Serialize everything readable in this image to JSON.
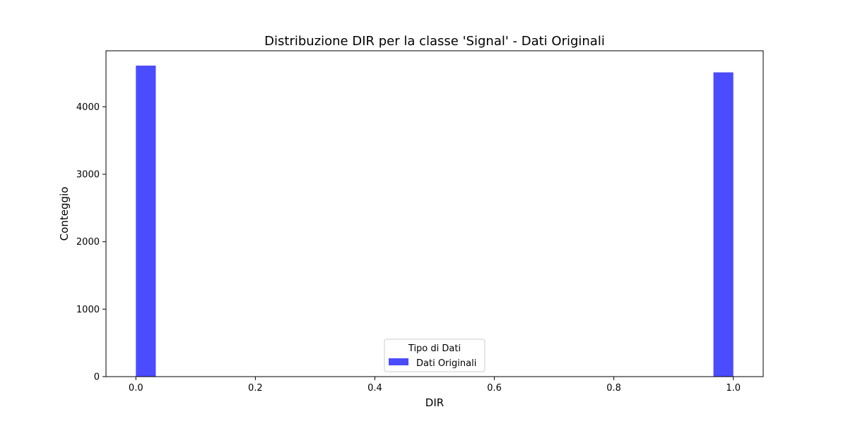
{
  "chart_data": {
    "type": "bar",
    "title": "Distribuzione DIR per la classe 'Signal' - Dati Originali",
    "xlabel": "DIR",
    "ylabel": "Conteggio",
    "xlim": [
      -0.05,
      1.05
    ],
    "ylim": [
      0,
      4830
    ],
    "xticks": [
      {
        "value": 0.0,
        "label": "0.0"
      },
      {
        "value": 0.2,
        "label": "0.2"
      },
      {
        "value": 0.4,
        "label": "0.4"
      },
      {
        "value": 0.6,
        "label": "0.6"
      },
      {
        "value": 0.8,
        "label": "0.8"
      },
      {
        "value": 1.0,
        "label": "1.0"
      }
    ],
    "yticks": [
      {
        "value": 0,
        "label": "0"
      },
      {
        "value": 1000,
        "label": "1000"
      },
      {
        "value": 2000,
        "label": "2000"
      },
      {
        "value": 3000,
        "label": "3000"
      },
      {
        "value": 4000,
        "label": "4000"
      }
    ],
    "bin_width": 0.0333,
    "series": [
      {
        "name": "Dati Originali",
        "color": "#4b4bff",
        "bins": [
          {
            "x_start": 0.0,
            "x_end": 0.0333,
            "value": 4610
          },
          {
            "x_start": 0.9667,
            "x_end": 1.0,
            "value": 4510
          }
        ]
      }
    ],
    "legend": {
      "title": "Tipo di Dati",
      "placement": "lower center",
      "entries": [
        "Dati Originali"
      ]
    },
    "grid": false
  }
}
